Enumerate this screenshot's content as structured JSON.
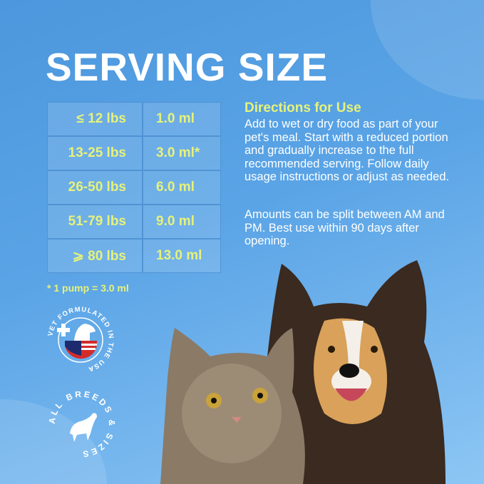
{
  "title": "SERVING SIZE",
  "table": [
    {
      "weight": "≤ 12 lbs",
      "amount": "1.0 ml"
    },
    {
      "weight": "13-25 lbs",
      "amount": "3.0 ml*"
    },
    {
      "weight": "26-50 lbs",
      "amount": "6.0 ml"
    },
    {
      "weight": "51-79 lbs",
      "amount": "9.0 ml"
    },
    {
      "weight": "⩾ 80 lbs",
      "amount": "13.0 ml"
    }
  ],
  "footnote": "* 1 pump = 3.0 ml",
  "directions": {
    "heading": "Directions for Use",
    "p1": "Add to wet or dry food as part of your pet's meal. Start with a reduced portion and gradually increase to the full recommended serving. Follow daily usage instructions or adjust as needed.",
    "p2": "Amounts can be split between AM and PM. Best use within 90 days after opening."
  },
  "badges": {
    "vet": "VET FORMULATED IN THE USA",
    "breeds": "ALL BREEDS & SIZES"
  },
  "colors": {
    "accent": "#e6f27a",
    "background": "#5aa4e6"
  }
}
